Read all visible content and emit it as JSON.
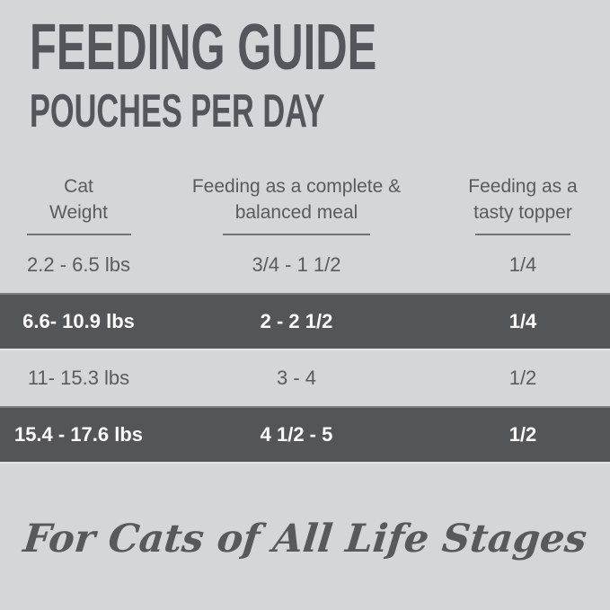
{
  "page": {
    "background_color": "#d5d6d8",
    "text_color": "#58595b",
    "band_color": "#545557",
    "band_text_color": "#fcfcfc"
  },
  "header": {
    "title": "FEEDING GUIDE",
    "subtitle": "POUCHES PER DAY"
  },
  "table": {
    "columns": [
      {
        "label_line1": "Cat",
        "label_line2": "Weight"
      },
      {
        "label_line1": "Feeding as a complete &",
        "label_line2": "balanced meal"
      },
      {
        "label_line1": "Feeding as a",
        "label_line2": "tasty topper"
      }
    ],
    "rows": [
      {
        "weight": "2.2 - 6.5 lbs",
        "meal": "3/4 - 1 1/2",
        "topper": "1/4",
        "highlighted": false
      },
      {
        "weight": "6.6- 10.9 lbs",
        "meal": "2 - 2 1/2",
        "topper": "1/4",
        "highlighted": true
      },
      {
        "weight": "11- 15.3 lbs",
        "meal": "3 - 4",
        "topper": "1/2",
        "highlighted": false
      },
      {
        "weight": "15.4 - 17.6 lbs",
        "meal": "4 1/2 - 5",
        "topper": "1/2",
        "highlighted": true
      }
    ]
  },
  "footer": {
    "tagline": "For Cats of All Life Stages"
  }
}
